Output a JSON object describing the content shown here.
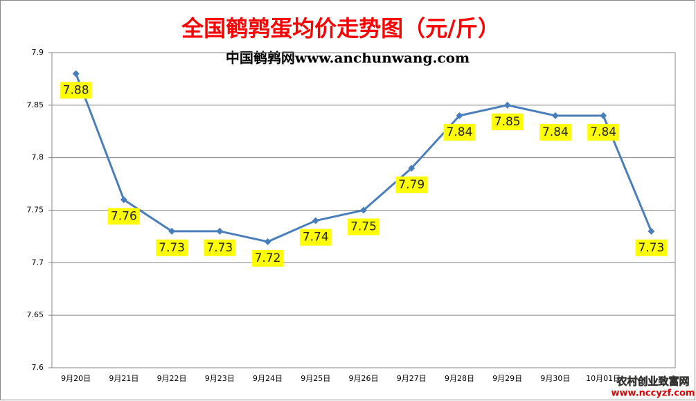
{
  "chart_data": {
    "type": "line",
    "title": "全国鹌鹑蛋均价走势图（元/斤）",
    "subtitle": "中国鹌鹑网www.anchunwang.com",
    "categories": [
      "9月20日",
      "9月21日",
      "9月22日",
      "9月23日",
      "9月24日",
      "9月25日",
      "9月26日",
      "9月27日",
      "9月28日",
      "9月29日",
      "9月30日",
      "10月01日",
      null
    ],
    "values": [
      7.88,
      7.76,
      7.73,
      7.73,
      7.72,
      7.74,
      7.75,
      7.79,
      7.84,
      7.85,
      7.84,
      7.84,
      7.73
    ],
    "color": "#4a7ebb",
    "label_color": "#ffff00",
    "ylim": [
      7.6,
      7.9
    ],
    "yticks": [
      7.6,
      7.65,
      7.7,
      7.75,
      7.8,
      7.85,
      7.9
    ],
    "grid": true,
    "annotations": [
      "农村创业致富网",
      "www.nccyzf.com"
    ]
  }
}
